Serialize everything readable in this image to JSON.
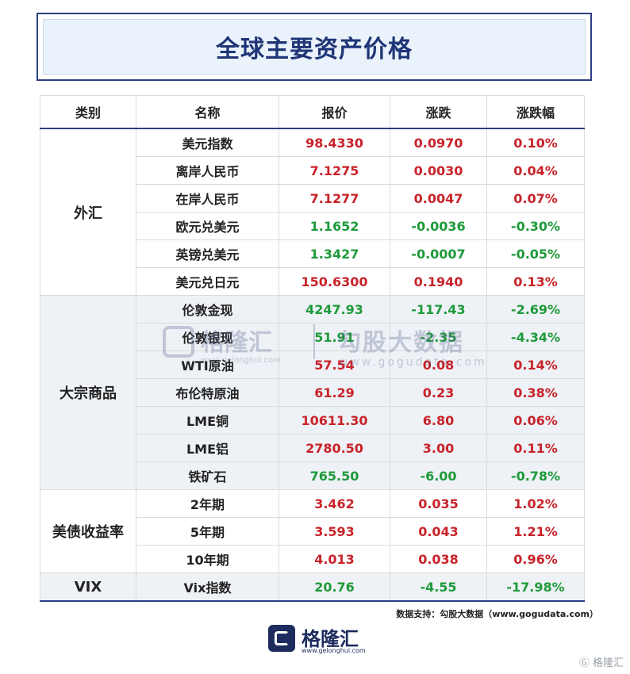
{
  "title": "全球主要资产价格",
  "headers": {
    "category": "类别",
    "name": "名称",
    "price": "报价",
    "change": "涨跌",
    "pct": "涨跌幅"
  },
  "groups": [
    {
      "category": "外汇",
      "rows": [
        {
          "name": "美元指数",
          "price": "98.4330",
          "change": "0.0970",
          "pct": "0.10%"
        },
        {
          "name": "离岸人民币",
          "price": "7.1275",
          "change": "0.0030",
          "pct": "0.04%"
        },
        {
          "name": "在岸人民币",
          "price": "7.1277",
          "change": "0.0047",
          "pct": "0.07%"
        },
        {
          "name": "欧元兑美元",
          "price": "1.1652",
          "change": "-0.0036",
          "pct": "-0.30%"
        },
        {
          "name": "英镑兑美元",
          "price": "1.3427",
          "change": "-0.0007",
          "pct": "-0.05%"
        },
        {
          "name": "美元兑日元",
          "price": "150.6300",
          "change": "0.1940",
          "pct": "0.13%"
        }
      ]
    },
    {
      "category": "大宗商品",
      "rows": [
        {
          "name": "伦敦金现",
          "price": "4247.93",
          "change": "-117.43",
          "pct": "-2.69%"
        },
        {
          "name": "伦敦银现",
          "price": "51.91",
          "change": "-2.35",
          "pct": "-4.34%"
        },
        {
          "name": "WTI原油",
          "price": "57.54",
          "change": "0.08",
          "pct": "0.14%"
        },
        {
          "name": "布伦特原油",
          "price": "61.29",
          "change": "0.23",
          "pct": "0.38%"
        },
        {
          "name": "LME铜",
          "price": "10611.30",
          "change": "6.80",
          "pct": "0.06%"
        },
        {
          "name": "LME铝",
          "price": "2780.50",
          "change": "3.00",
          "pct": "0.11%"
        },
        {
          "name": "铁矿石",
          "price": "765.50",
          "change": "-6.00",
          "pct": "-0.78%"
        }
      ]
    },
    {
      "category": "美债收益率",
      "rows": [
        {
          "name": "2年期",
          "price": "3.462",
          "change": "0.035",
          "pct": "1.02%"
        },
        {
          "name": "5年期",
          "price": "3.593",
          "change": "0.043",
          "pct": "1.21%"
        },
        {
          "name": "10年期",
          "price": "4.013",
          "change": "0.038",
          "pct": "0.96%"
        }
      ]
    },
    {
      "category": "VIX",
      "rows": [
        {
          "name": "Vix指数",
          "price": "20.76",
          "change": "-4.55",
          "pct": "-17.98%"
        }
      ]
    }
  ],
  "watermark": {
    "brand": "格隆汇",
    "brand_url": "www.gelonghui.com",
    "data_brand": "勾股大数据",
    "data_url": "www.gogudata.com"
  },
  "footnote": "数据支持：勾股大数据（www.gogudata.com）",
  "bottom_logo": {
    "brand": "格隆汇",
    "url": "www.gelonghui.com"
  },
  "corner_mark": "格隆汇",
  "colors": {
    "up": "#c8232a",
    "down": "#1e9a3a",
    "accent": "#2b3f83"
  }
}
